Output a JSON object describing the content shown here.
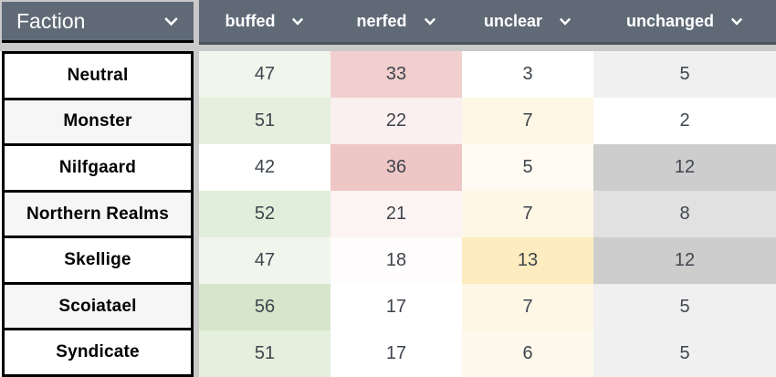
{
  "table": {
    "faction_header": {
      "label": "Faction"
    },
    "columns": [
      {
        "label": "buffed"
      },
      {
        "label": "nerfed"
      },
      {
        "label": "unclear"
      },
      {
        "label": "unchanged"
      }
    ],
    "rows": [
      {
        "faction": "Neutral",
        "cells": [
          {
            "value": "47",
            "bg": "#f0f6ec"
          },
          {
            "value": "33",
            "bg": "#f2cfcf"
          },
          {
            "value": "3",
            "bg": "#ffffff"
          },
          {
            "value": "5",
            "bg": "#f0f0f0"
          }
        ]
      },
      {
        "faction": "Monster",
        "cells": [
          {
            "value": "51",
            "bg": "#e4efde"
          },
          {
            "value": "22",
            "bg": "#fbf0f0"
          },
          {
            "value": "7",
            "bg": "#fef7e6"
          },
          {
            "value": "2",
            "bg": "#ffffff"
          }
        ]
      },
      {
        "faction": "Nilfgaard",
        "cells": [
          {
            "value": "42",
            "bg": "#ffffff"
          },
          {
            "value": "36",
            "bg": "#efc6c6"
          },
          {
            "value": "5",
            "bg": "#fffbf2"
          },
          {
            "value": "12",
            "bg": "#cdcdcd"
          }
        ]
      },
      {
        "faction": "Northern Realms",
        "cells": [
          {
            "value": "52",
            "bg": "#e1eedb"
          },
          {
            "value": "21",
            "bg": "#fcf3f3"
          },
          {
            "value": "7",
            "bg": "#fef7e6"
          },
          {
            "value": "8",
            "bg": "#e1e1e1"
          }
        ]
      },
      {
        "faction": "Skellige",
        "cells": [
          {
            "value": "47",
            "bg": "#f0f6ec"
          },
          {
            "value": "18",
            "bg": "#fefcfc"
          },
          {
            "value": "13",
            "bg": "#fdecc0"
          },
          {
            "value": "12",
            "bg": "#cdcdcd"
          }
        ]
      },
      {
        "faction": "Scoiatael",
        "cells": [
          {
            "value": "56",
            "bg": "#d5e6cb"
          },
          {
            "value": "17",
            "bg": "#ffffff"
          },
          {
            "value": "7",
            "bg": "#fef7e6"
          },
          {
            "value": "5",
            "bg": "#f0f0f0"
          }
        ]
      },
      {
        "faction": "Syndicate",
        "cells": [
          {
            "value": "51",
            "bg": "#e4efde"
          },
          {
            "value": "17",
            "bg": "#ffffff"
          },
          {
            "value": "6",
            "bg": "#fef9ec"
          },
          {
            "value": "5",
            "bg": "#f0f0f0"
          }
        ]
      }
    ]
  },
  "colors": {
    "header_bg": "#5f6a76",
    "header_text": "#ffffff",
    "data_header_underline": "#4a535d",
    "faction_header_underline": "#000000",
    "gutter": "#c9c9c9",
    "cell_text": "#3f454d",
    "faction_text": "#000000",
    "faction_border": "#000000",
    "faction_row_alt_bg": "#f6f6f6"
  }
}
